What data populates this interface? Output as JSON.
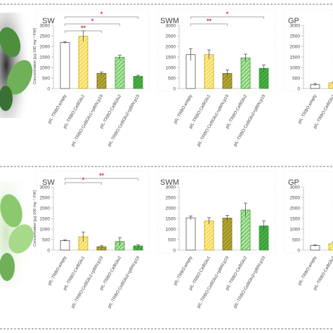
{
  "chart_data": [
    {
      "type": "bar",
      "panel": "top",
      "ylabel": "Concentration [µg 100 mg⁻¹ FW]",
      "categories": [
        "pIL-TRBO:empty",
        "pIL-TRBO:CeBGlu1",
        "pIL-TRBO:CeBGlu1+pBIN:p19",
        "pIL-TRBO:CeBGlu2",
        "pIL-TRBO:CeBGlu2+pBIN:p19"
      ],
      "subplots": [
        {
          "title": "SW",
          "ylim": [
            0,
            3000
          ],
          "yticks": [
            0,
            500,
            1000,
            1500,
            2000,
            2500,
            3000
          ],
          "values": [
            2180,
            2480,
            720,
            1480,
            580
          ],
          "errors": [
            40,
            260,
            60,
            100,
            50
          ],
          "significance": [
            {
              "label": "*",
              "from": 0,
              "to": 4
            },
            {
              "label": "*",
              "from": 0,
              "to": 3
            },
            {
              "label": "**",
              "from": 0,
              "to": 2
            }
          ]
        },
        {
          "title": "SWM",
          "ylim": [
            0,
            3000
          ],
          "yticks": [
            0,
            500,
            1000,
            1500,
            2000,
            2500,
            3000
          ],
          "values": [
            1610,
            1610,
            720,
            1450,
            960
          ],
          "errors": [
            280,
            220,
            160,
            180,
            160
          ],
          "significance": [
            {
              "label": "*",
              "from": 0,
              "to": 4
            },
            {
              "label": "**",
              "from": 0,
              "to": 2
            }
          ]
        },
        {
          "title": "GP",
          "ylim": [
            0,
            3000
          ],
          "yticks": [
            0,
            500,
            1000,
            1500,
            2000,
            2500,
            3000
          ],
          "values": [
            185,
            265
          ],
          "errors": [
            55,
            45
          ],
          "significance": []
        }
      ]
    },
    {
      "type": "bar",
      "panel": "bottom",
      "ylabel": "Concentration [µg 100 mg⁻¹ FW]",
      "categories": [
        "pIL-TRBO:empty",
        "pIL-TRBO:CeBGlu1",
        "pIL-TRBO:CeBGlu1+pBIN:p19",
        "pIL-TRBO:CeBGlu2",
        "pIL-TRBO:CeBGlu2+pBIN:p19"
      ],
      "subplots": [
        {
          "title": "SW",
          "ylim": [
            0,
            3000
          ],
          "yticks": [
            0,
            500,
            1000,
            1500,
            2000,
            2500,
            3000
          ],
          "values": [
            450,
            630,
            160,
            410,
            200
          ],
          "errors": [
            40,
            230,
            50,
            180,
            60
          ],
          "significance": [
            {
              "label": "**",
              "from": 0,
              "to": 4
            },
            {
              "label": "*",
              "from": 0,
              "to": 2
            }
          ]
        },
        {
          "title": "SWM",
          "ylim": [
            0,
            3000
          ],
          "yticks": [
            0,
            500,
            1000,
            1500,
            2000,
            2500,
            3000
          ],
          "values": [
            1530,
            1380,
            1520,
            1900,
            1150
          ],
          "errors": [
            90,
            160,
            130,
            330,
            230
          ],
          "significance": []
        },
        {
          "title": "GP",
          "ylim": [
            0,
            3000
          ],
          "yticks": [
            0,
            500,
            1000,
            1500,
            2000,
            2500,
            3000
          ],
          "values": [
            215,
            300
          ],
          "errors": [
            35,
            75
          ],
          "significance": []
        }
      ]
    }
  ],
  "colors": {
    "empty_fill": "#ffffff",
    "empty_stroke": "#555555",
    "yellow": "#f6dc5a",
    "yellow_stroke": "#c8a800",
    "olive": "#b5a832",
    "olive_stroke": "#7b7222",
    "green_light": "#7fcf6f",
    "green_stroke": "#3c9a33",
    "green_dark": "#47b243",
    "sig_red": "#d8343c",
    "sig_line": "#8b8b8b",
    "axis": "#bbbbbb",
    "text": "#444444",
    "leaf_light": "#9fd183",
    "leaf_dark": "#3c7a3a"
  }
}
